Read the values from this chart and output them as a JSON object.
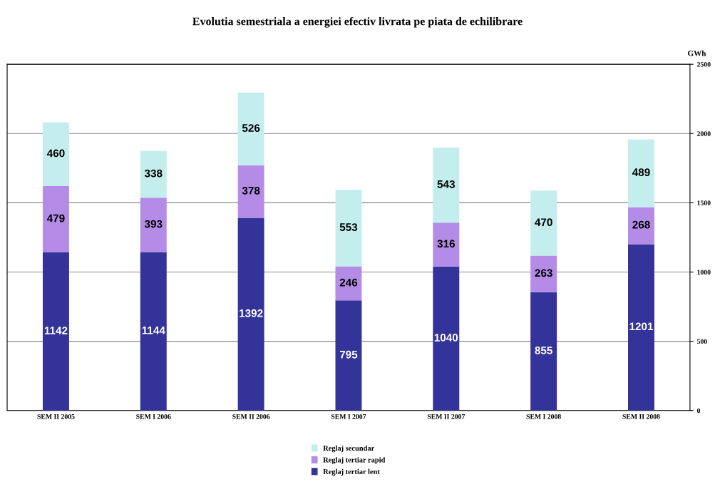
{
  "chart_data": {
    "type": "bar",
    "title": "Evolutia semestriala a energiei efectiv livrata pe piata de echilibrare",
    "ylabel": "GWh",
    "categories": [
      "SEM II 2005",
      "SEM I 2006",
      "SEM II 2006",
      "SEM I 2007",
      "SEM II 2007",
      "SEM I 2008",
      "SEM II 2008"
    ],
    "stacked": true,
    "series": [
      {
        "name": "Reglaj tertiar lent",
        "color": "#333399",
        "values": [
          1142,
          1144,
          1392,
          795,
          1040,
          855,
          1201
        ]
      },
      {
        "name": "Reglaj tertiar rapid",
        "color": "#b48ce8",
        "values": [
          479,
          393,
          378,
          246,
          316,
          263,
          268
        ]
      },
      {
        "name": "Reglaj secundar",
        "color": "#c4eeee",
        "values": [
          460,
          338,
          526,
          553,
          543,
          470,
          489
        ]
      }
    ],
    "ylim": [
      0,
      2500
    ],
    "yticks": [
      0,
      500,
      1000,
      1500,
      2000,
      2500
    ],
    "grid": "y",
    "legend": "bottom",
    "data_labels": true
  }
}
